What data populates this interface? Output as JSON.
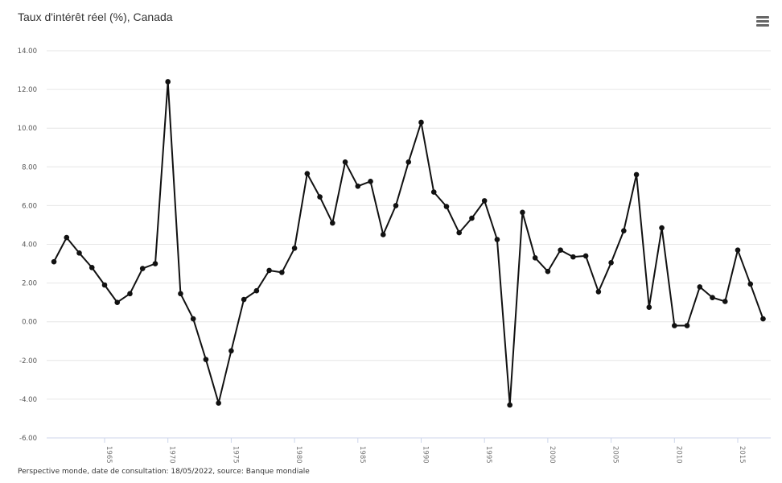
{
  "header": {
    "title": "Taux d'intérêt réel (%), Canada",
    "menu_icon": "hamburger-menu-icon"
  },
  "footer": {
    "credits": "Perspective monde, date de consultation: 18/05/2022, source: Banque mondiale"
  },
  "colors": {
    "line": "#111111",
    "grid": "#e6e6e6",
    "axis": "#ccd6eb"
  },
  "chart_data": {
    "type": "line",
    "title": "Taux d'intérêt réel (%), Canada",
    "xlabel": "",
    "ylabel": "",
    "ylim": [
      -6,
      14
    ],
    "xlim": [
      1961,
      2017
    ],
    "grid": true,
    "legend": "none",
    "y_ticks": [
      "14.00",
      "12.00",
      "10.00",
      "8.00",
      "6.00",
      "4.00",
      "2.00",
      "0.00",
      "-2.00",
      "-4.00",
      "-6.00"
    ],
    "x_ticks": [
      "1965",
      "1970",
      "1975",
      "1980",
      "1985",
      "1990",
      "1995",
      "2000",
      "2005",
      "2010",
      "2015"
    ],
    "series": [
      {
        "name": "Taux d'intérêt réel (%)",
        "x": [
          1961,
          1962,
          1963,
          1964,
          1965,
          1966,
          1967,
          1968,
          1969,
          1970,
          1971,
          1972,
          1973,
          1974,
          1975,
          1976,
          1977,
          1978,
          1979,
          1980,
          1981,
          1982,
          1983,
          1984,
          1985,
          1986,
          1987,
          1988,
          1989,
          1990,
          1991,
          1992,
          1993,
          1994,
          1995,
          1996,
          1997,
          1998,
          1999,
          2000,
          2001,
          2002,
          2003,
          2004,
          2005,
          2006,
          2007,
          2008,
          2009,
          2010,
          2011,
          2012,
          2013,
          2014,
          2015,
          2016,
          2017
        ],
        "values": [
          3.1,
          4.35,
          3.55,
          2.8,
          1.9,
          1.0,
          1.45,
          2.75,
          3.0,
          12.4,
          1.45,
          0.15,
          -1.95,
          -4.2,
          -1.5,
          1.15,
          1.6,
          2.65,
          2.55,
          3.8,
          7.65,
          6.45,
          5.1,
          8.25,
          7.0,
          7.25,
          4.5,
          6.0,
          8.25,
          10.3,
          6.7,
          5.95,
          4.6,
          5.35,
          6.25,
          4.25,
          -4.3,
          5.65,
          3.3,
          2.6,
          3.7,
          3.35,
          3.4,
          1.55,
          3.05,
          4.7,
          7.6,
          0.75,
          4.85,
          -0.2,
          -0.2,
          1.8,
          1.25,
          1.05,
          3.7,
          1.95,
          0.15
        ]
      }
    ]
  }
}
